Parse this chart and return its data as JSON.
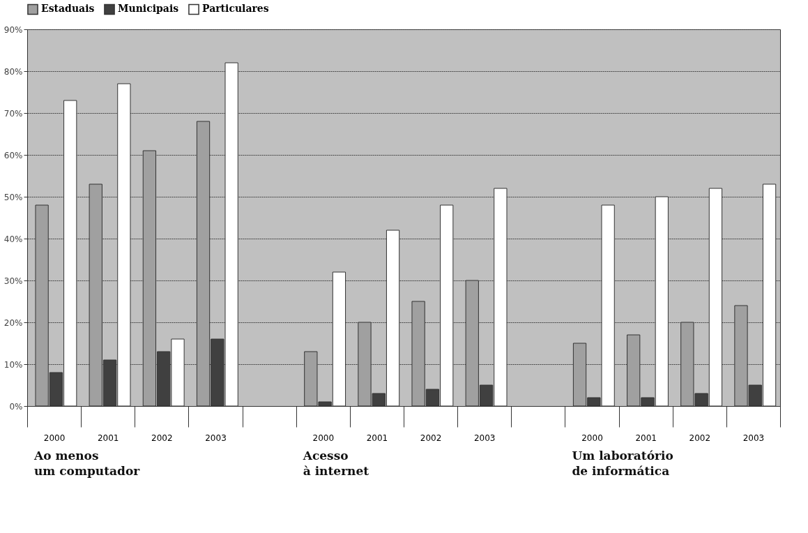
{
  "chart_data": {
    "type": "bar",
    "categories": [
      "2000",
      "2001",
      "2002",
      "2003",
      null,
      "2000",
      "2001",
      "2002",
      "2003",
      null,
      "2000",
      "2001",
      "2002",
      "2003"
    ],
    "series": [
      {
        "name": "Estaduais",
        "color": "#a0a0a0",
        "values": [
          48,
          53,
          61,
          68,
          null,
          13,
          20,
          25,
          30,
          null,
          15,
          17,
          20,
          24
        ]
      },
      {
        "name": "Municipais",
        "color": "#404040",
        "values": [
          8,
          11,
          13,
          16,
          null,
          1,
          3,
          4,
          5,
          null,
          2,
          2,
          3,
          5
        ]
      },
      {
        "name": "Particulares",
        "color": "#ffffff",
        "values": [
          73,
          77,
          16,
          82,
          null,
          32,
          42,
          48,
          52,
          null,
          48,
          50,
          52,
          53
        ]
      }
    ],
    "ylim": [
      0,
      90
    ],
    "yticks": [
      {
        "value": 0,
        "label": "0%"
      },
      {
        "value": 10,
        "label": "10%"
      },
      {
        "value": 20,
        "label": "20%"
      },
      {
        "value": 30,
        "label": "30%"
      },
      {
        "value": 40,
        "label": "40%"
      },
      {
        "value": 50,
        "label": "50%"
      },
      {
        "value": 60,
        "label": "60%"
      },
      {
        "value": 70,
        "label": "70%"
      },
      {
        "value": 80,
        "label": "80%"
      },
      {
        "value": 90,
        "label": "90%"
      }
    ],
    "grid": "y",
    "legend": "top",
    "annotations": [
      "Ao menos\num computador",
      "Acesso\nà internet",
      "Um laboratório\nde informática"
    ]
  }
}
